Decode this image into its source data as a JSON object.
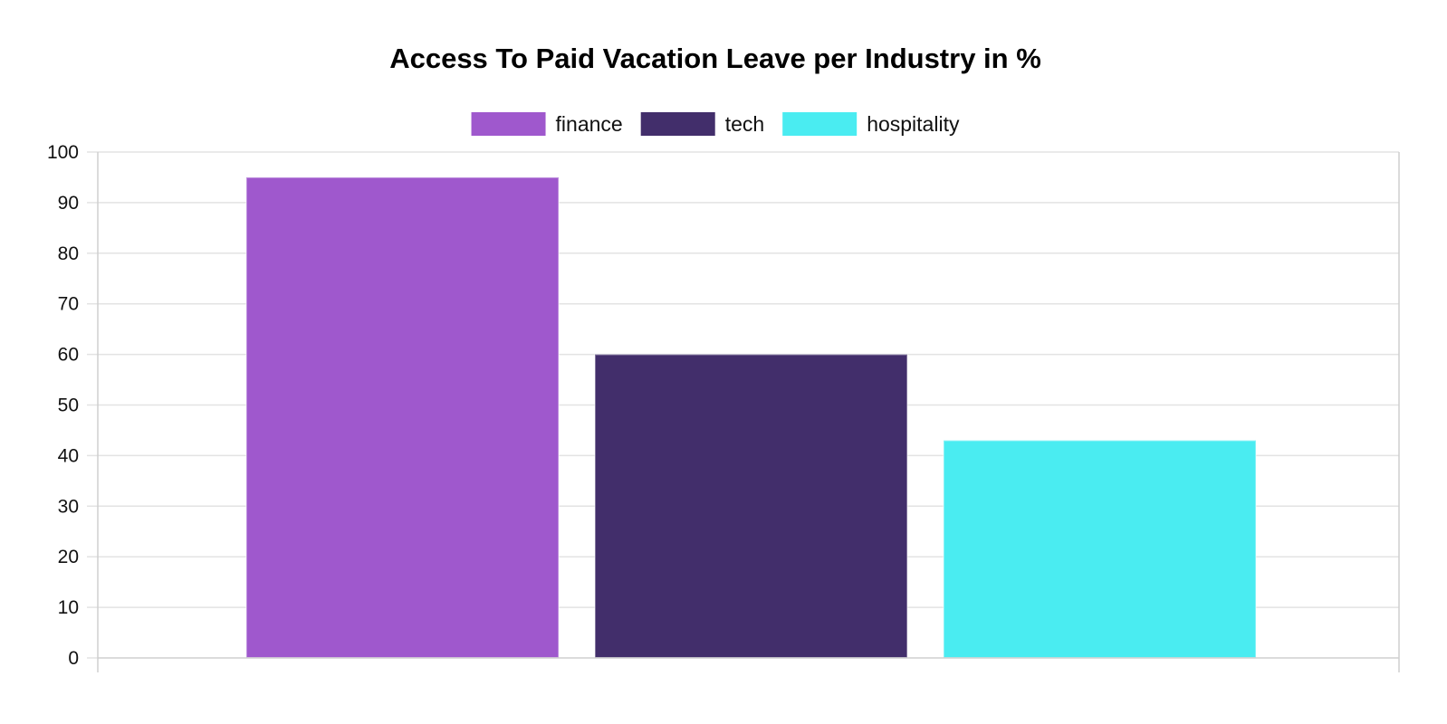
{
  "chart_data": {
    "type": "bar",
    "title": "Access To Paid Vacation Leave per Industry in %",
    "xlabel": "",
    "ylabel": "",
    "categories": [
      ""
    ],
    "series": [
      {
        "name": "finance",
        "values": [
          95
        ],
        "color": "#9f58cd"
      },
      {
        "name": "tech",
        "values": [
          60
        ],
        "color": "#422e6b"
      },
      {
        "name": "hospitality",
        "values": [
          43
        ],
        "color": "#4aecf1"
      }
    ],
    "ylim": [
      0,
      100
    ],
    "yticks": [
      "0",
      "10",
      "20",
      "30",
      "40",
      "50",
      "60",
      "70",
      "80",
      "90",
      "100"
    ],
    "grid": true,
    "legend_position": "top-center"
  }
}
